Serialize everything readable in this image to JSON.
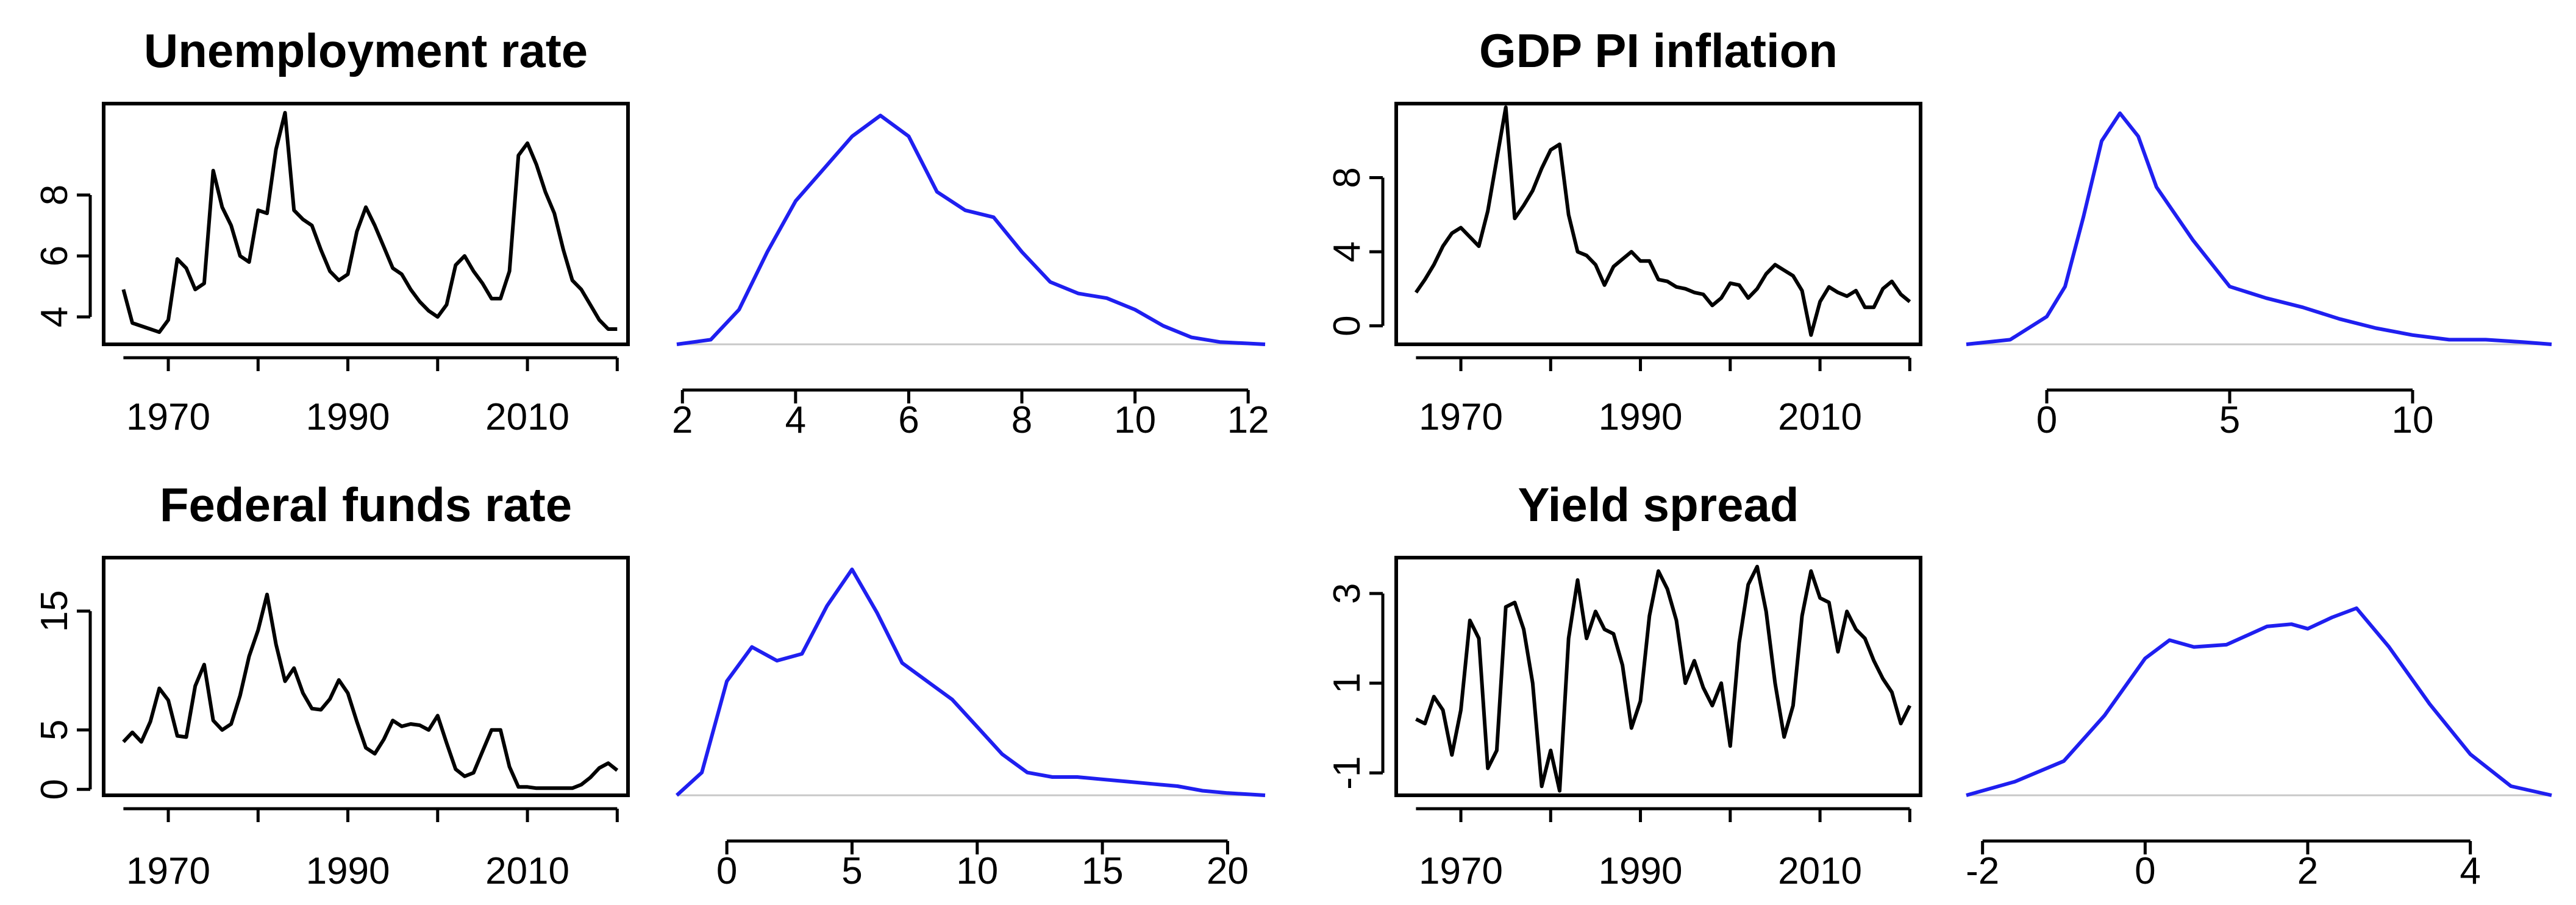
{
  "colors": {
    "series": "#000000",
    "density": "#1f1ff0",
    "baseline": "#c8c8c8"
  },
  "chart_data": [
    {
      "type": "line",
      "title": "Unemployment rate",
      "x_ticks": [
        1970,
        1990,
        2010
      ],
      "y_ticks": [
        4,
        6,
        8
      ],
      "xlim": [
        1962.8,
        2021.2
      ],
      "ylim": [
        3.1,
        11.0
      ],
      "points": [
        [
          1965,
          4.9
        ],
        [
          1966,
          3.8
        ],
        [
          1968,
          3.6
        ],
        [
          1969,
          3.5
        ],
        [
          1970,
          3.9
        ],
        [
          1971,
          5.9
        ],
        [
          1972,
          5.6
        ],
        [
          1973,
          4.9
        ],
        [
          1974,
          5.1
        ],
        [
          1975,
          8.8
        ],
        [
          1976,
          7.6
        ],
        [
          1977,
          7.0
        ],
        [
          1978,
          6.0
        ],
        [
          1979,
          5.8
        ],
        [
          1980,
          7.5
        ],
        [
          1981,
          7.4
        ],
        [
          1982,
          9.5
        ],
        [
          1983,
          10.7
        ],
        [
          1984,
          7.5
        ],
        [
          1985,
          7.2
        ],
        [
          1986,
          7.0
        ],
        [
          1987,
          6.2
        ],
        [
          1988,
          5.5
        ],
        [
          1989,
          5.2
        ],
        [
          1990,
          5.4
        ],
        [
          1991,
          6.8
        ],
        [
          1992,
          7.6
        ],
        [
          1993,
          7.0
        ],
        [
          1994,
          6.3
        ],
        [
          1995,
          5.6
        ],
        [
          1996,
          5.4
        ],
        [
          1997,
          4.9
        ],
        [
          1998,
          4.5
        ],
        [
          1999,
          4.2
        ],
        [
          2000,
          4.0
        ],
        [
          2001,
          4.4
        ],
        [
          2002,
          5.7
        ],
        [
          2003,
          6.0
        ],
        [
          2004,
          5.5
        ],
        [
          2005,
          5.1
        ],
        [
          2006,
          4.6
        ],
        [
          2007,
          4.6
        ],
        [
          2008,
          5.5
        ],
        [
          2009,
          9.3
        ],
        [
          2010,
          9.7
        ],
        [
          2011,
          9.0
        ],
        [
          2012,
          8.1
        ],
        [
          2013,
          7.4
        ],
        [
          2014,
          6.2
        ],
        [
          2015,
          5.2
        ],
        [
          2016,
          4.9
        ],
        [
          2017,
          4.4
        ],
        [
          2018,
          3.9
        ],
        [
          2019,
          3.6
        ],
        [
          2020,
          3.6
        ]
      ]
    },
    {
      "type": "area",
      "title": "",
      "x_ticks": [
        2,
        4,
        6,
        8,
        10,
        12
      ],
      "xlim": [
        1.9,
        12.3
      ],
      "ylim": [
        0,
        1
      ],
      "points": [
        [
          1.9,
          0.0
        ],
        [
          2.5,
          0.02
        ],
        [
          3.0,
          0.15
        ],
        [
          3.5,
          0.4
        ],
        [
          4.0,
          0.62
        ],
        [
          4.5,
          0.76
        ],
        [
          5.0,
          0.9
        ],
        [
          5.5,
          0.99
        ],
        [
          6.0,
          0.9
        ],
        [
          6.5,
          0.66
        ],
        [
          7.0,
          0.58
        ],
        [
          7.5,
          0.55
        ],
        [
          8.0,
          0.4
        ],
        [
          8.5,
          0.27
        ],
        [
          9.0,
          0.22
        ],
        [
          9.5,
          0.2
        ],
        [
          10.0,
          0.15
        ],
        [
          10.5,
          0.08
        ],
        [
          11.0,
          0.03
        ],
        [
          11.5,
          0.01
        ],
        [
          12.3,
          0.0
        ]
      ]
    },
    {
      "type": "line",
      "title": "GDP PI inflation",
      "x_ticks": [
        1970,
        1990,
        2010
      ],
      "y_ticks": [
        0,
        4,
        8
      ],
      "xlim": [
        1962.8,
        2021.2
      ],
      "ylim": [
        -1.0,
        12.0
      ],
      "points": [
        [
          1965,
          1.8
        ],
        [
          1966,
          2.5
        ],
        [
          1967,
          3.3
        ],
        [
          1968,
          4.3
        ],
        [
          1969,
          5.0
        ],
        [
          1970,
          5.3
        ],
        [
          1971,
          4.8
        ],
        [
          1972,
          4.3
        ],
        [
          1973,
          6.2
        ],
        [
          1974,
          9.0
        ],
        [
          1975,
          11.8
        ],
        [
          1976,
          5.8
        ],
        [
          1977,
          6.5
        ],
        [
          1978,
          7.3
        ],
        [
          1979,
          8.5
        ],
        [
          1980,
          9.5
        ],
        [
          1981,
          9.8
        ],
        [
          1982,
          6.0
        ],
        [
          1983,
          4.0
        ],
        [
          1984,
          3.8
        ],
        [
          1985,
          3.3
        ],
        [
          1986,
          2.2
        ],
        [
          1987,
          3.2
        ],
        [
          1988,
          3.6
        ],
        [
          1989,
          4.0
        ],
        [
          1990,
          3.5
        ],
        [
          1991,
          3.5
        ],
        [
          1992,
          2.5
        ],
        [
          1993,
          2.4
        ],
        [
          1994,
          2.1
        ],
        [
          1995,
          2.0
        ],
        [
          1996,
          1.8
        ],
        [
          1997,
          1.7
        ],
        [
          1998,
          1.1
        ],
        [
          1999,
          1.5
        ],
        [
          2000,
          2.3
        ],
        [
          2001,
          2.2
        ],
        [
          2002,
          1.5
        ],
        [
          2003,
          2.0
        ],
        [
          2004,
          2.8
        ],
        [
          2005,
          3.3
        ],
        [
          2006,
          3.0
        ],
        [
          2007,
          2.7
        ],
        [
          2008,
          1.9
        ],
        [
          2009,
          -0.5
        ],
        [
          2010,
          1.3
        ],
        [
          2011,
          2.1
        ],
        [
          2012,
          1.8
        ],
        [
          2013,
          1.6
        ],
        [
          2014,
          1.9
        ],
        [
          2015,
          1.0
        ],
        [
          2016,
          1.0
        ],
        [
          2017,
          2.0
        ],
        [
          2018,
          2.4
        ],
        [
          2019,
          1.7
        ],
        [
          2020,
          1.3
        ]
      ]
    },
    {
      "type": "area",
      "title": "",
      "x_ticks": [
        0,
        5,
        10
      ],
      "xlim": [
        -2.2,
        13.8
      ],
      "ylim": [
        0,
        1
      ],
      "points": [
        [
          -2.2,
          0.0
        ],
        [
          -1.0,
          0.02
        ],
        [
          0.0,
          0.12
        ],
        [
          0.5,
          0.25
        ],
        [
          1.0,
          0.55
        ],
        [
          1.5,
          0.88
        ],
        [
          2.0,
          1.0
        ],
        [
          2.5,
          0.9
        ],
        [
          3.0,
          0.68
        ],
        [
          4.0,
          0.45
        ],
        [
          5.0,
          0.25
        ],
        [
          6.0,
          0.2
        ],
        [
          7.0,
          0.16
        ],
        [
          8.0,
          0.11
        ],
        [
          9.0,
          0.07
        ],
        [
          10.0,
          0.04
        ],
        [
          11.0,
          0.02
        ],
        [
          12.0,
          0.02
        ],
        [
          13.0,
          0.01
        ],
        [
          13.8,
          0.0
        ]
      ]
    },
    {
      "type": "line",
      "title": "Federal funds rate",
      "x_ticks": [
        1970,
        1990,
        2010
      ],
      "y_ticks": [
        0,
        5,
        15
      ],
      "xlim": [
        1962.8,
        2021.2
      ],
      "ylim": [
        -0.5,
        19.5
      ],
      "points": [
        [
          1965,
          4.0
        ],
        [
          1966,
          4.8
        ],
        [
          1967,
          4.0
        ],
        [
          1968,
          5.7
        ],
        [
          1969,
          8.5
        ],
        [
          1970,
          7.5
        ],
        [
          1971,
          4.5
        ],
        [
          1972,
          4.4
        ],
        [
          1973,
          8.7
        ],
        [
          1974,
          10.5
        ],
        [
          1975,
          5.8
        ],
        [
          1976,
          5.0
        ],
        [
          1977,
          5.5
        ],
        [
          1978,
          7.9
        ],
        [
          1979,
          11.2
        ],
        [
          1980,
          13.4
        ],
        [
          1981,
          16.4
        ],
        [
          1982,
          12.2
        ],
        [
          1983,
          9.1
        ],
        [
          1984,
          10.2
        ],
        [
          1985,
          8.1
        ],
        [
          1986,
          6.8
        ],
        [
          1987,
          6.7
        ],
        [
          1988,
          7.6
        ],
        [
          1989,
          9.2
        ],
        [
          1990,
          8.1
        ],
        [
          1991,
          5.7
        ],
        [
          1992,
          3.5
        ],
        [
          1993,
          3.0
        ],
        [
          1994,
          4.2
        ],
        [
          1995,
          5.8
        ],
        [
          1996,
          5.3
        ],
        [
          1997,
          5.5
        ],
        [
          1998,
          5.4
        ],
        [
          1999,
          5.0
        ],
        [
          2000,
          6.2
        ],
        [
          2001,
          3.9
        ],
        [
          2002,
          1.7
        ],
        [
          2003,
          1.1
        ],
        [
          2004,
          1.4
        ],
        [
          2005,
          3.2
        ],
        [
          2006,
          5.0
        ],
        [
          2007,
          5.0
        ],
        [
          2008,
          1.9
        ],
        [
          2009,
          0.2
        ],
        [
          2010,
          0.2
        ],
        [
          2011,
          0.1
        ],
        [
          2012,
          0.1
        ],
        [
          2013,
          0.1
        ],
        [
          2014,
          0.1
        ],
        [
          2015,
          0.1
        ],
        [
          2016,
          0.4
        ],
        [
          2017,
          1.0
        ],
        [
          2018,
          1.8
        ],
        [
          2019,
          2.2
        ],
        [
          2020,
          1.6
        ]
      ]
    },
    {
      "type": "area",
      "title": "",
      "x_ticks": [
        0,
        5,
        10,
        15,
        20
      ],
      "xlim": [
        -2.0,
        21.5
      ],
      "ylim": [
        0,
        1
      ],
      "points": [
        [
          -2.0,
          0.0
        ],
        [
          -1.0,
          0.1
        ],
        [
          0.0,
          0.5
        ],
        [
          1.0,
          0.65
        ],
        [
          2.0,
          0.59
        ],
        [
          3.0,
          0.62
        ],
        [
          4.0,
          0.83
        ],
        [
          5.0,
          0.99
        ],
        [
          6.0,
          0.8
        ],
        [
          7.0,
          0.58
        ],
        [
          8.0,
          0.5
        ],
        [
          9.0,
          0.42
        ],
        [
          10.0,
          0.3
        ],
        [
          11.0,
          0.18
        ],
        [
          12.0,
          0.1
        ],
        [
          13.0,
          0.08
        ],
        [
          14.0,
          0.08
        ],
        [
          15.0,
          0.07
        ],
        [
          16.0,
          0.06
        ],
        [
          17.0,
          0.05
        ],
        [
          18.0,
          0.04
        ],
        [
          19.0,
          0.02
        ],
        [
          20.0,
          0.01
        ],
        [
          21.5,
          0.0
        ]
      ]
    },
    {
      "type": "line",
      "title": "Yield spread",
      "x_ticks": [
        1970,
        1990,
        2010
      ],
      "y_ticks": [
        -1,
        1,
        3
      ],
      "xlim": [
        1962.8,
        2021.2
      ],
      "ylim": [
        -1.5,
        3.8
      ],
      "points": [
        [
          1965,
          0.2
        ],
        [
          1966,
          0.1
        ],
        [
          1967,
          0.7
        ],
        [
          1968,
          0.4
        ],
        [
          1969,
          -0.6
        ],
        [
          1970,
          0.4
        ],
        [
          1971,
          2.4
        ],
        [
          1972,
          2.0
        ],
        [
          1973,
          -0.9
        ],
        [
          1974,
          -0.5
        ],
        [
          1975,
          2.7
        ],
        [
          1976,
          2.8
        ],
        [
          1977,
          2.2
        ],
        [
          1978,
          1.0
        ],
        [
          1979,
          -1.3
        ],
        [
          1980,
          -0.5
        ],
        [
          1981,
          -1.4
        ],
        [
          1982,
          2.0
        ],
        [
          1983,
          3.3
        ],
        [
          1984,
          2.0
        ],
        [
          1985,
          2.6
        ],
        [
          1986,
          2.2
        ],
        [
          1987,
          2.1
        ],
        [
          1988,
          1.4
        ],
        [
          1989,
          0.0
        ],
        [
          1990,
          0.6
        ],
        [
          1991,
          2.5
        ],
        [
          1992,
          3.5
        ],
        [
          1993,
          3.1
        ],
        [
          1994,
          2.4
        ],
        [
          1995,
          1.0
        ],
        [
          1996,
          1.5
        ],
        [
          1997,
          0.9
        ],
        [
          1998,
          0.5
        ],
        [
          1999,
          1.0
        ],
        [
          2000,
          -0.4
        ],
        [
          2001,
          1.9
        ],
        [
          2002,
          3.2
        ],
        [
          2003,
          3.6
        ],
        [
          2004,
          2.6
        ],
        [
          2005,
          1.0
        ],
        [
          2006,
          -0.2
        ],
        [
          2007,
          0.5
        ],
        [
          2008,
          2.5
        ],
        [
          2009,
          3.5
        ],
        [
          2010,
          2.9
        ],
        [
          2011,
          2.8
        ],
        [
          2012,
          1.7
        ],
        [
          2013,
          2.6
        ],
        [
          2014,
          2.2
        ],
        [
          2015,
          2.0
        ],
        [
          2016,
          1.5
        ],
        [
          2017,
          1.1
        ],
        [
          2018,
          0.8
        ],
        [
          2019,
          0.1
        ],
        [
          2020,
          0.5
        ]
      ]
    },
    {
      "type": "area",
      "title": "",
      "x_ticks": [
        -2,
        0,
        2,
        4
      ],
      "xlim": [
        -2.2,
        5.0
      ],
      "ylim": [
        0,
        1
      ],
      "points": [
        [
          -2.2,
          0.0
        ],
        [
          -1.6,
          0.06
        ],
        [
          -1.0,
          0.15
        ],
        [
          -0.5,
          0.35
        ],
        [
          0.0,
          0.6
        ],
        [
          0.3,
          0.68
        ],
        [
          0.6,
          0.65
        ],
        [
          1.0,
          0.66
        ],
        [
          1.5,
          0.74
        ],
        [
          1.8,
          0.75
        ],
        [
          2.0,
          0.73
        ],
        [
          2.3,
          0.78
        ],
        [
          2.6,
          0.82
        ],
        [
          3.0,
          0.65
        ],
        [
          3.5,
          0.4
        ],
        [
          4.0,
          0.18
        ],
        [
          4.5,
          0.04
        ],
        [
          5.0,
          0.0
        ]
      ]
    }
  ]
}
